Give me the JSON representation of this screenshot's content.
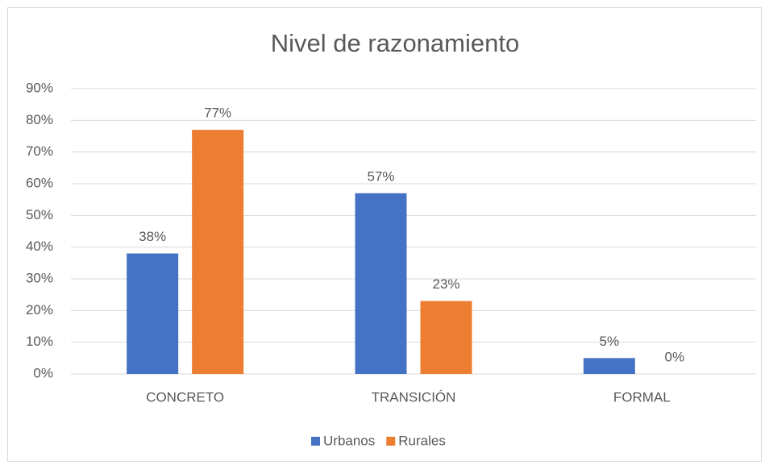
{
  "chart_data": {
    "type": "bar",
    "title": "Nivel de razonamiento",
    "categories": [
      "CONCRETO",
      "TRANSICIÓN",
      "FORMAL"
    ],
    "series": [
      {
        "name": "Urbanos",
        "color": "#4472c4",
        "values": [
          38,
          57,
          5
        ],
        "value_labels": [
          "38%",
          "57%",
          "5%"
        ]
      },
      {
        "name": "Rurales",
        "color": "#ed7d31",
        "values": [
          77,
          23,
          0
        ],
        "value_labels": [
          "77%",
          "23%",
          "0%"
        ]
      }
    ],
    "ylim": [
      0,
      90
    ],
    "yticks": [
      {
        "value": 0,
        "label": "0%"
      },
      {
        "value": 10,
        "label": "10%"
      },
      {
        "value": 20,
        "label": "20%"
      },
      {
        "value": 30,
        "label": "30%"
      },
      {
        "value": 40,
        "label": "40%"
      },
      {
        "value": 50,
        "label": "50%"
      },
      {
        "value": 60,
        "label": "60%"
      },
      {
        "value": 70,
        "label": "70%"
      },
      {
        "value": 80,
        "label": "80%"
      },
      {
        "value": 90,
        "label": "90%"
      }
    ],
    "grid": true,
    "legend": "bottom"
  }
}
